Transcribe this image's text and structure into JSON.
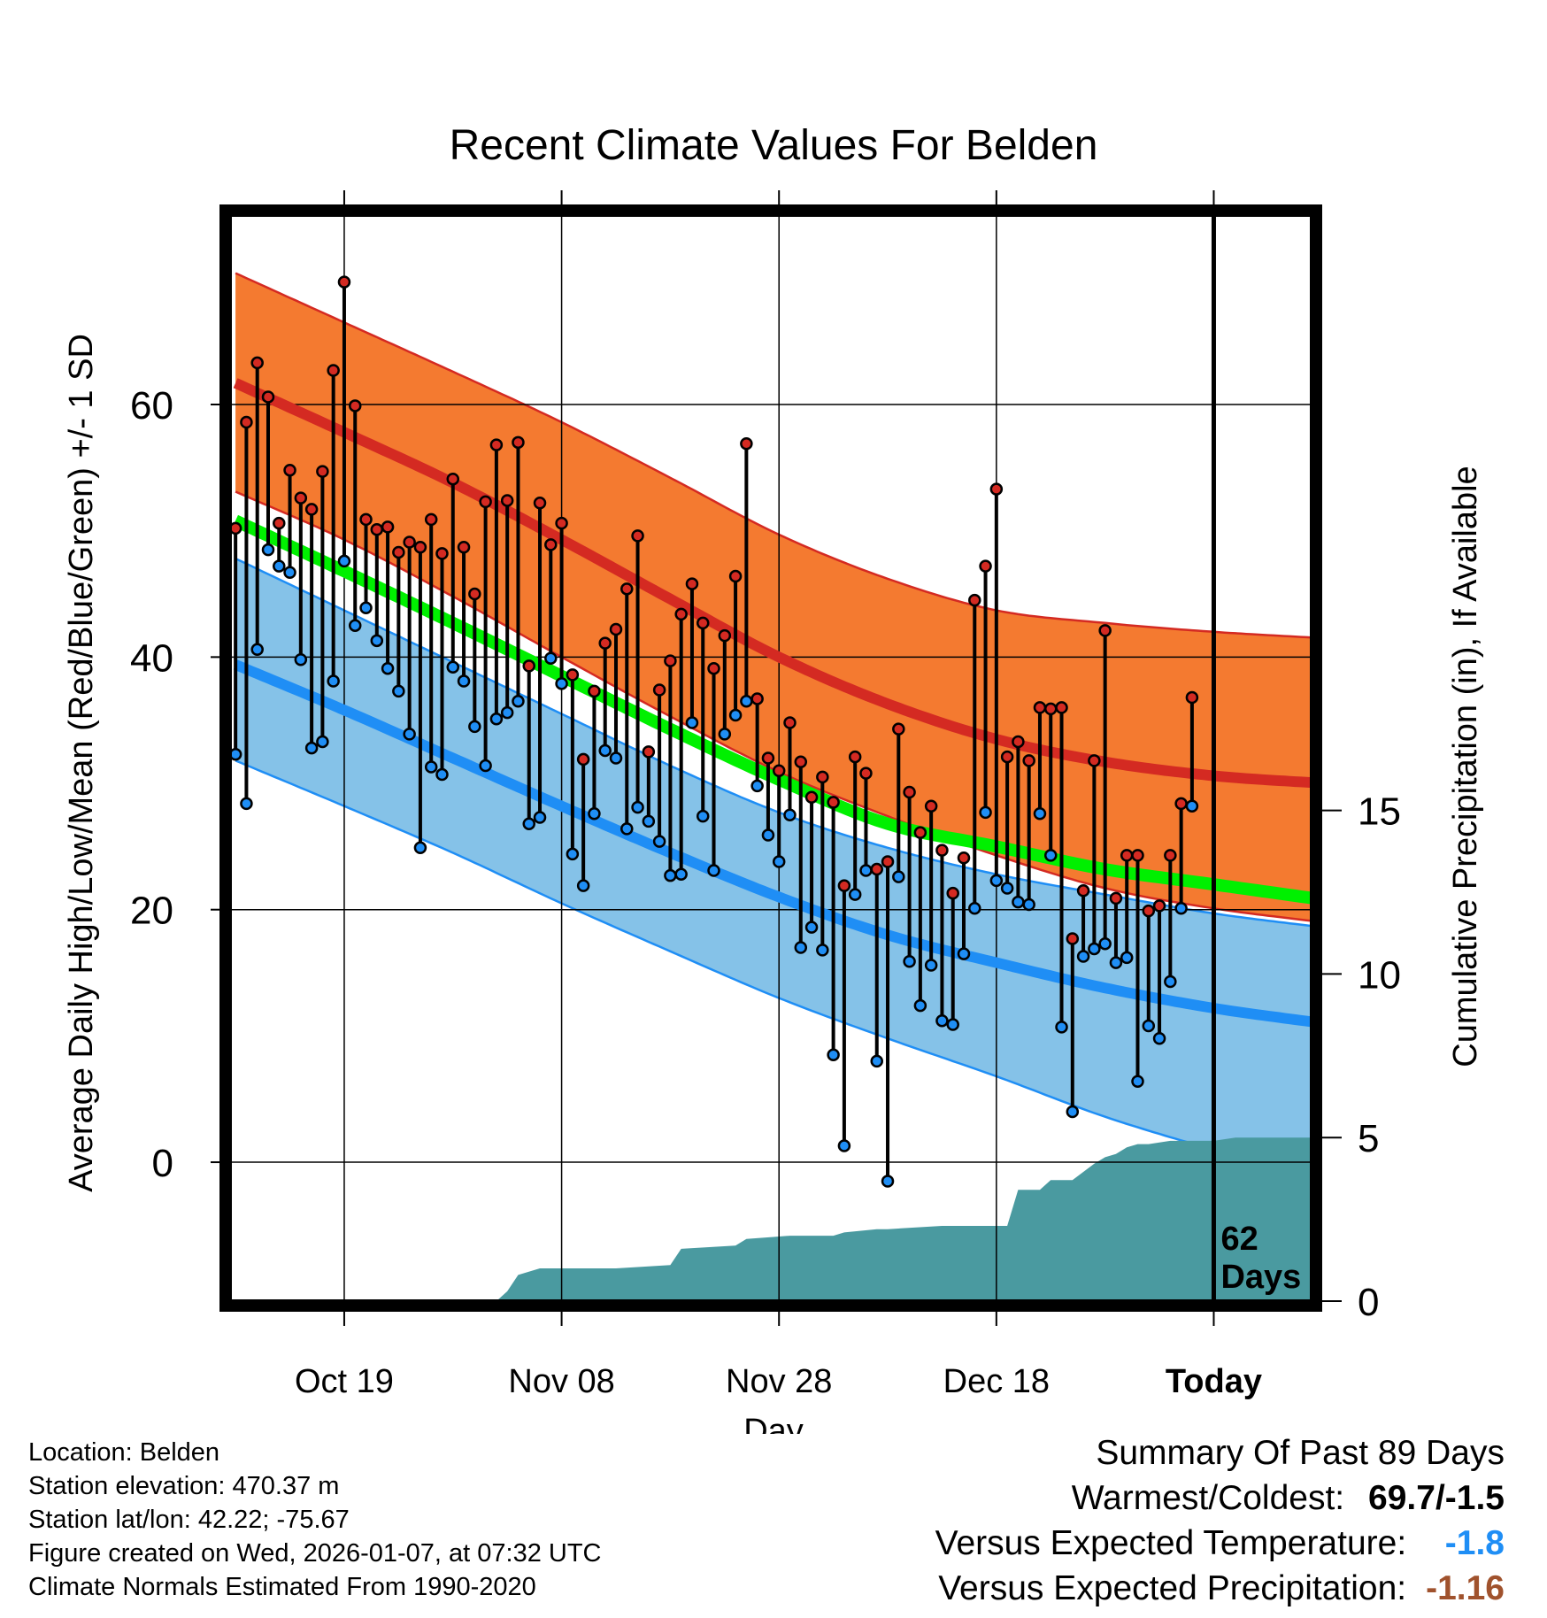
{
  "chart_data": {
    "type": "line",
    "title": "Recent Climate Values For Belden",
    "xlabel": "Day",
    "ylabel": "Average Daily High/Low/Mean (Red/Blue/Green) +/- 1 SD",
    "y2label": "Cumulative Precipitation (in), If Available",
    "ylim": [
      -11,
      75
    ],
    "y2lim": [
      0,
      33.2
    ],
    "y_ticks": [
      "0",
      "20",
      "40",
      "60"
    ],
    "y2_ticks": [
      "0",
      "5",
      "10",
      "15"
    ],
    "xlim": [
      -10.5,
      89
    ],
    "x_ticks": [
      {
        "day": 0,
        "label": "Oct 19"
      },
      {
        "day": 20,
        "label": "Nov 08"
      },
      {
        "day": 40,
        "label": "Nov 28"
      },
      {
        "day": 60,
        "label": "Dec 18"
      },
      {
        "day": 80,
        "label": "Today"
      }
    ],
    "today_day": 80,
    "today_label_line1": "62",
    "today_label_line2": "Days",
    "colors": {
      "high_band": "#f47a30",
      "high_mean": "#d42a22",
      "low_band": "#85c2e8",
      "low_mean": "#1f8ef5",
      "mean": "#00f000",
      "overlap": "#97121a",
      "precip": "#4a9aa0",
      "high_dot": "#d42a22",
      "low_dot": "#1f8ef5",
      "band_edge_high": "#d42a22",
      "band_edge_low": "#1f8ef5"
    },
    "normals": {
      "days": [
        -10,
        0,
        10,
        20,
        30,
        40,
        50,
        60,
        70,
        80,
        90
      ],
      "high_upper": [
        70.4,
        66.5,
        62.6,
        58.6,
        54.2,
        49.7,
        46.2,
        43.7,
        42.7,
        42.0,
        41.5
      ],
      "high_mean": [
        61.7,
        57.8,
        53.8,
        49.3,
        44.6,
        40.0,
        36.3,
        33.5,
        31.7,
        30.6,
        30.0
      ],
      "high_lower": [
        53.1,
        49.3,
        44.8,
        40.0,
        35.3,
        30.9,
        27.4,
        24.3,
        21.7,
        20.1,
        19.0
      ],
      "mean": [
        50.8,
        46.8,
        42.7,
        38.5,
        34.3,
        30.3,
        26.8,
        25.0,
        23.2,
        22.0,
        20.8
      ],
      "low_upper": [
        47.8,
        43.7,
        39.6,
        35.5,
        31.4,
        27.7,
        24.9,
        22.8,
        21.2,
        19.7,
        18.6
      ],
      "low_mean": [
        39.4,
        35.8,
        32.0,
        28.2,
        24.5,
        21.0,
        18.0,
        15.8,
        13.8,
        12.2,
        11.0
      ],
      "low_lower": [
        31.8,
        28.2,
        24.5,
        20.5,
        16.7,
        13.0,
        9.8,
        6.8,
        3.6,
        1.0,
        -1.2
      ]
    },
    "daily": {
      "start_day": -10,
      "high": [
        50.2,
        58.6,
        63.3,
        60.6,
        50.6,
        54.8,
        52.6,
        51.7,
        54.7,
        62.7,
        69.7,
        59.9,
        50.9,
        50.1,
        50.3,
        48.3,
        49.1,
        48.7,
        50.9,
        48.2,
        54.1,
        48.7,
        45.0,
        52.3,
        56.8,
        52.4,
        57.0,
        39.3,
        52.2,
        48.9,
        50.6,
        38.6,
        31.9,
        37.3,
        41.1,
        42.2,
        45.4,
        49.6,
        32.5,
        37.4,
        39.7,
        43.4,
        45.8,
        42.7,
        39.1,
        41.7,
        46.4,
        56.9,
        36.7,
        32.0,
        31.0,
        34.8,
        31.7,
        28.9,
        30.5,
        28.5,
        21.9,
        32.1,
        30.8,
        23.2,
        23.8,
        34.3,
        29.3,
        26.1,
        28.2,
        24.7,
        21.3,
        24.1,
        44.5,
        47.2,
        53.3,
        32.1,
        33.3,
        31.8,
        36.0,
        35.9,
        36.0,
        17.7,
        21.5,
        31.8,
        42.1,
        20.9,
        24.3,
        24.3,
        19.9,
        20.3,
        24.3,
        28.4,
        36.8
      ],
      "low": [
        32.3,
        28.4,
        40.6,
        48.5,
        47.2,
        46.7,
        39.8,
        32.8,
        33.3,
        38.1,
        47.6,
        42.5,
        43.9,
        41.3,
        39.1,
        37.3,
        33.9,
        24.9,
        31.3,
        30.7,
        39.2,
        38.1,
        34.5,
        31.4,
        35.1,
        35.6,
        36.5,
        26.8,
        27.3,
        39.9,
        37.9,
        24.4,
        21.9,
        27.6,
        32.6,
        32.0,
        26.4,
        28.1,
        27.0,
        25.4,
        22.7,
        22.8,
        34.8,
        27.4,
        23.1,
        33.9,
        35.4,
        36.5,
        29.8,
        25.9,
        23.8,
        27.5,
        17.0,
        18.6,
        16.8,
        8.5,
        1.3,
        21.2,
        23.1,
        8.0,
        -1.5,
        22.6,
        15.9,
        12.4,
        15.6,
        11.2,
        10.9,
        16.5,
        20.1,
        27.7,
        22.3,
        21.7,
        20.6,
        20.4,
        27.6,
        24.3,
        10.7,
        4.0,
        16.3,
        16.9,
        17.3,
        15.8,
        16.2,
        6.4,
        10.8,
        9.8,
        14.3,
        20.1,
        28.2
      ]
    },
    "precip": {
      "days": [
        -10,
        14,
        15,
        16,
        18,
        20,
        25,
        30,
        31,
        36,
        37,
        41,
        45,
        46,
        49,
        50,
        55,
        59,
        61,
        62,
        64,
        65,
        67,
        69,
        70,
        71,
        72,
        73,
        74,
        76,
        80,
        82,
        89
      ],
      "values": [
        0.0,
        0.0,
        0.3,
        0.8,
        1.0,
        1.0,
        1.0,
        1.1,
        1.6,
        1.7,
        1.9,
        2.0,
        2.0,
        2.1,
        2.2,
        2.2,
        2.3,
        2.3,
        2.3,
        3.4,
        3.4,
        3.7,
        3.7,
        4.2,
        4.4,
        4.5,
        4.7,
        4.8,
        4.8,
        4.9,
        4.9,
        5.0,
        5.0
      ]
    }
  },
  "footer": {
    "location": "Location: Belden",
    "elevation": "Station elevation: 470.37 m",
    "latlon": "Station lat/lon: 42.22; -75.67",
    "created": "Figure created on Wed, 2026-01-07, at 07:32 UTC",
    "normals": "Climate Normals Estimated From 1990-2020"
  },
  "summary": {
    "title": "Summary Of Past 89 Days",
    "warmest_label": "Warmest/Coldest:",
    "warmest_value": "69.7/-1.5",
    "temp_label": "Versus Expected Temperature:",
    "temp_value": "-1.8",
    "temp_color": "#1f8ef5",
    "precip_label": "Versus Expected Precipitation:",
    "precip_value": "-1.16",
    "precip_color": "#a0522d"
  }
}
